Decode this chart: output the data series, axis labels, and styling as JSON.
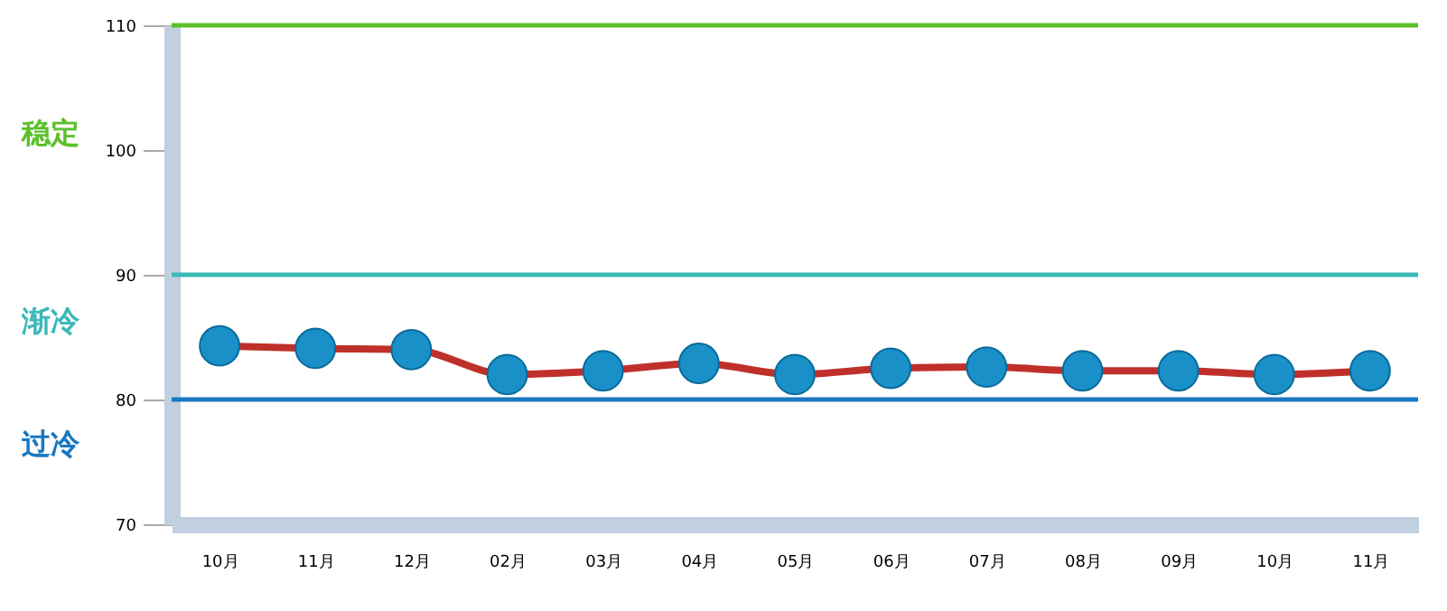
{
  "chart_data": {
    "type": "line",
    "categories": [
      "10月",
      "11月",
      "12月",
      "02月",
      "03月",
      "04月",
      "05月",
      "06月",
      "07月",
      "08月",
      "09月",
      "10月",
      "11月"
    ],
    "series": [
      {
        "color": "#c0302a",
        "values": [
          84.3,
          84.1,
          84.0,
          82.0,
          82.3,
          82.9,
          82.0,
          82.5,
          82.6,
          82.3,
          82.3,
          82.0,
          82.3
        ]
      }
    ],
    "marker": "circle",
    "ylim": [
      70,
      110
    ],
    "yticks": [
      70,
      80,
      90,
      100,
      110
    ],
    "ref_lines": [
      {
        "axis": "y",
        "value": 110,
        "color": "#5cc02a"
      },
      {
        "axis": "y",
        "value": 90,
        "color": "#3cb8b8"
      },
      {
        "axis": "y",
        "value": 80,
        "color": "#1a78c0"
      }
    ],
    "annotations": [
      "稳定",
      "渐冷",
      "过冷"
    ],
    "grid": false
  }
}
